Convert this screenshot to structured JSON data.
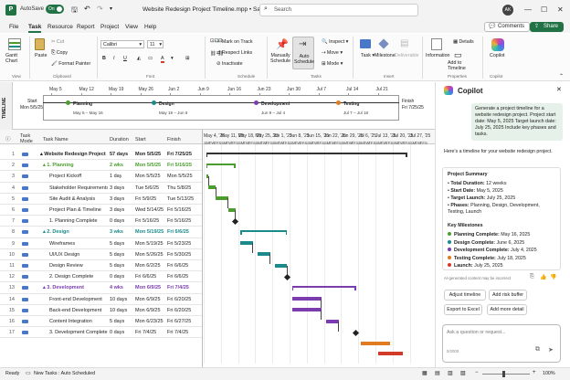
{
  "titlebar": {
    "autosave_label": "AutoSave",
    "autosave_state": "On",
    "doc_title": "Website Redesign Project Timeline.mpp • Saved",
    "search_placeholder": "Search",
    "user_initials": "AK"
  },
  "menu": {
    "items": [
      "File",
      "Task",
      "Resource",
      "Report",
      "Project",
      "View",
      "Help"
    ],
    "active": "Task",
    "comments_label": "Comments",
    "share_label": "Share"
  },
  "ribbon": {
    "gantt_chart": "Gantt\nChart",
    "paste": "Paste",
    "cut": "Cut",
    "copy": "Copy",
    "format_painter": "Format Painter",
    "font_name": "Calibri",
    "font_size": "11",
    "mark_on_track": "Mark on Track",
    "respect_links": "Respect Links",
    "inactivate": "Inactivate",
    "manually_schedule": "Manually\nSchedule",
    "auto_schedule": "Auto\nSchedule",
    "inspect": "Inspect",
    "move": "Move",
    "mode": "Mode",
    "task": "Task",
    "milestone": "Milestone",
    "deliverable": "Deliverable",
    "information": "Information",
    "details": "Details",
    "add_to_timeline": "Add to\nTimeline",
    "copilot": "Copilot",
    "groups": [
      "View",
      "Clipboard",
      "Font",
      "Schedule",
      "Tasks",
      "Insert",
      "Properties",
      "Copilot"
    ]
  },
  "timeline": {
    "side_label": "TIMELINE",
    "start_label": "Start",
    "start_date": "Mon 5/5/25",
    "finish_label": "Finish",
    "finish_date": "Fri 7/25/25",
    "scale": [
      "May 5",
      "May 12",
      "May 19",
      "May 26",
      "Jun 2",
      "Jun 9",
      "Jun 16",
      "Jun 23",
      "Jun 30",
      "Jul 7",
      "Jul 14",
      "Jul 21"
    ],
    "phases": [
      {
        "name": "Planning",
        "dates": "May 5 – May 16",
        "color": "#4a9d2e"
      },
      {
        "name": "Design",
        "dates": "May 19 – Jun 6",
        "color": "#1a8a8a"
      },
      {
        "name": "Development",
        "dates": "Jun 9 – Jul 4",
        "color": "#7a3cae"
      },
      {
        "name": "Testing",
        "dates": "Jul 7 – Jul 18",
        "color": "#e07b1f"
      }
    ]
  },
  "table": {
    "headers": {
      "info": "ⓘ",
      "mode": "Task\nMode",
      "name": "Task Name",
      "duration": "Duration",
      "start": "Start",
      "finish": "Finish"
    },
    "rows": [
      {
        "id": "1",
        "name": "▴ Website Redesign Project",
        "duration": "57 days",
        "start": "Mon 5/5/25",
        "finish": "Fri 7/25/25",
        "summary": true,
        "indent": 0,
        "color": "#222"
      },
      {
        "id": "2",
        "name": "▴ 1. Planning",
        "duration": "2 wks",
        "start": "Mon 5/5/25",
        "finish": "Fri 5/16/25",
        "summary": true,
        "indent": 1,
        "color": "#4a9d2e"
      },
      {
        "id": "3",
        "name": "Project Kickoff",
        "duration": "1 day",
        "start": "Mon 5/5/25",
        "finish": "Mon 5/5/25",
        "indent": 2
      },
      {
        "id": "4",
        "name": "Stakeholder Requirements",
        "duration": "3 days",
        "start": "Tue 5/6/25",
        "finish": "Thu 5/8/25",
        "indent": 2
      },
      {
        "id": "5",
        "name": "Site Audit & Analysis",
        "duration": "3 days",
        "start": "Fri 5/9/25",
        "finish": "Tue 5/13/25",
        "indent": 2
      },
      {
        "id": "6",
        "name": "Project Plan & Timeline",
        "duration": "3 days",
        "start": "Wed 5/14/25",
        "finish": "Fri 5/16/25",
        "indent": 2
      },
      {
        "id": "7",
        "name": "1. Planning Complete",
        "duration": "0 days",
        "start": "Fri 5/16/25",
        "finish": "Fri 5/16/25",
        "indent": 2
      },
      {
        "id": "8",
        "name": "▴ 2. Design",
        "duration": "3 wks",
        "start": "Mon 5/19/25",
        "finish": "Fri 6/6/25",
        "summary": true,
        "indent": 1,
        "color": "#1a8a8a"
      },
      {
        "id": "9",
        "name": "Wireframes",
        "duration": "5 days",
        "start": "Mon 5/19/25",
        "finish": "Fri 5/23/25",
        "indent": 2
      },
      {
        "id": "10",
        "name": "UI/UX Design",
        "duration": "5 days",
        "start": "Mon 5/26/25",
        "finish": "Fri 5/30/25",
        "indent": 2
      },
      {
        "id": "11",
        "name": "Design Review",
        "duration": "5 days",
        "start": "Mon 6/2/25",
        "finish": "Fri 6/6/25",
        "indent": 2
      },
      {
        "id": "12",
        "name": "2. Design Complete",
        "duration": "0 days",
        "start": "Fri 6/6/25",
        "finish": "Fri 6/6/25",
        "indent": 2
      },
      {
        "id": "13",
        "name": "▴ 3. Development",
        "duration": "4 wks",
        "start": "Mon 6/9/25",
        "finish": "Fri 7/4/25",
        "summary": true,
        "indent": 1,
        "color": "#7a3cae"
      },
      {
        "id": "14",
        "name": "Front-end Development",
        "duration": "10 days",
        "start": "Mon 6/9/25",
        "finish": "Fri 6/20/25",
        "indent": 2
      },
      {
        "id": "15",
        "name": "Back-end Development",
        "duration": "10 days",
        "start": "Mon 6/9/25",
        "finish": "Fri 6/20/25",
        "indent": 2
      },
      {
        "id": "16",
        "name": "Content Integration",
        "duration": "5 days",
        "start": "Mon 6/23/25",
        "finish": "Fri 6/27/25",
        "indent": 2
      },
      {
        "id": "17",
        "name": "3. Development Complete",
        "duration": "0 days",
        "start": "Fri 7/4/25",
        "finish": "Fri 7/4/25",
        "indent": 2
      }
    ]
  },
  "gantt": {
    "weeks": [
      "May 4, '25",
      "May 11, '25",
      "May 18, '25",
      "May 25, '25",
      "Jun 1, '25",
      "Jun 8, '25",
      "Jun 15, '25",
      "Jun 22, '25",
      "Jun 29, '25",
      "Jul 6, '25",
      "Jul 13, '25",
      "Jul 20, '25",
      "Jul 27, '25"
    ],
    "day_letters": [
      "S",
      "M",
      "T",
      "W",
      "T",
      "F",
      "S"
    ]
  },
  "copilot": {
    "title": "Copilot",
    "user_prompt": "Generate a project timeline for a website redesign project. Project start date: May 5, 2025 Target launch date: July 25, 2025 Include key phases and tasks.",
    "reply_intro": "Here's a timeline for your website redesign project.",
    "summary_title": "Project Summary",
    "summary": [
      {
        "label": "Total Duration:",
        "value": "12 weeks"
      },
      {
        "label": "Start Date:",
        "value": "May 5, 2025"
      },
      {
        "label": "Target Launch:",
        "value": "July 25, 2025"
      },
      {
        "label": "Phases:",
        "value": "Planning, Design, Development, Testing, Launch"
      }
    ],
    "milestones_title": "Key Milestones",
    "milestones": [
      {
        "label": "Planning Complete:",
        "value": "May 16, 2025",
        "color": "#4a9d2e"
      },
      {
        "label": "Design Complete:",
        "value": "June 6, 2025",
        "color": "#1a8a8a"
      },
      {
        "label": "Development Complete:",
        "value": "July 4, 2025",
        "color": "#7a3cae"
      },
      {
        "label": "Testing Complete:",
        "value": "July 18, 2025",
        "color": "#e07b1f"
      },
      {
        "label": "Launch:",
        "value": "July 25, 2025",
        "color": "#d23a2a"
      }
    ],
    "disclaimer": "AI-generated content may be incorrect",
    "actions": [
      "Adjust timeline",
      "Add risk buffer",
      "Export to Excel",
      "Add more detail"
    ],
    "input_placeholder": "Ask a question or request...",
    "char_count": "0/2000"
  },
  "status": {
    "ready": "Ready",
    "new_tasks": "New Tasks : Auto Scheduled",
    "zoom": "100%"
  }
}
